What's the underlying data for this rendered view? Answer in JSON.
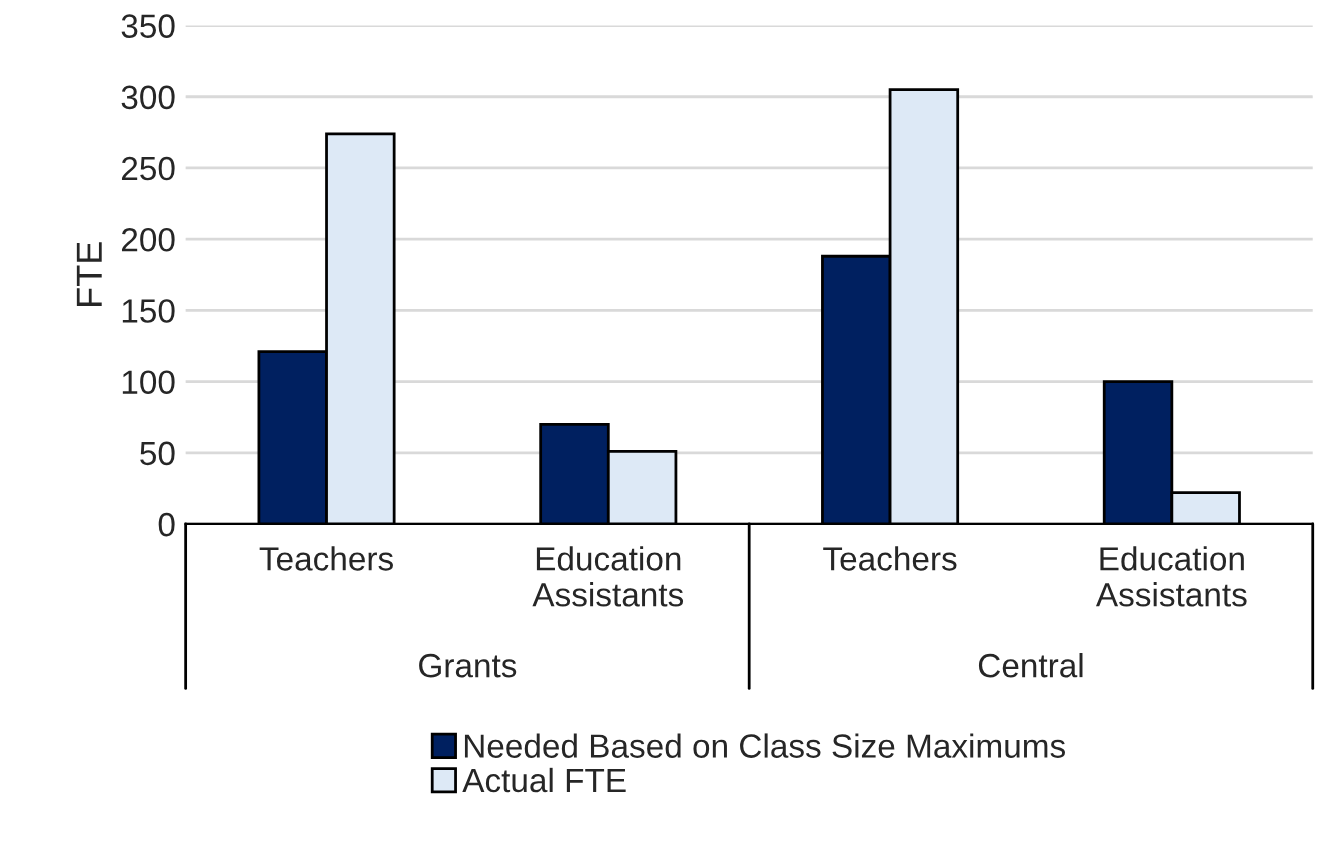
{
  "chart_data": {
    "type": "bar",
    "ylabel": "FTE",
    "categories": [
      "Teachers",
      "Education\nAssistants",
      "Teachers",
      "Education\nAssistants"
    ],
    "series": [
      {
        "name": "Needed Based on Class Size Maximums",
        "color": "#002060",
        "values": [
          121,
          70,
          188,
          100
        ]
      },
      {
        "name": "Actual FTE",
        "color": "#dde9f6",
        "values": [
          274,
          51,
          305,
          22
        ]
      }
    ],
    "annotations": [
      "Grants",
      "Central"
    ],
    "ylim": [
      0,
      350
    ],
    "yticks": [
      0,
      50,
      100,
      150,
      200,
      250,
      300,
      350
    ],
    "grid": "y",
    "legend": "bottom"
  }
}
